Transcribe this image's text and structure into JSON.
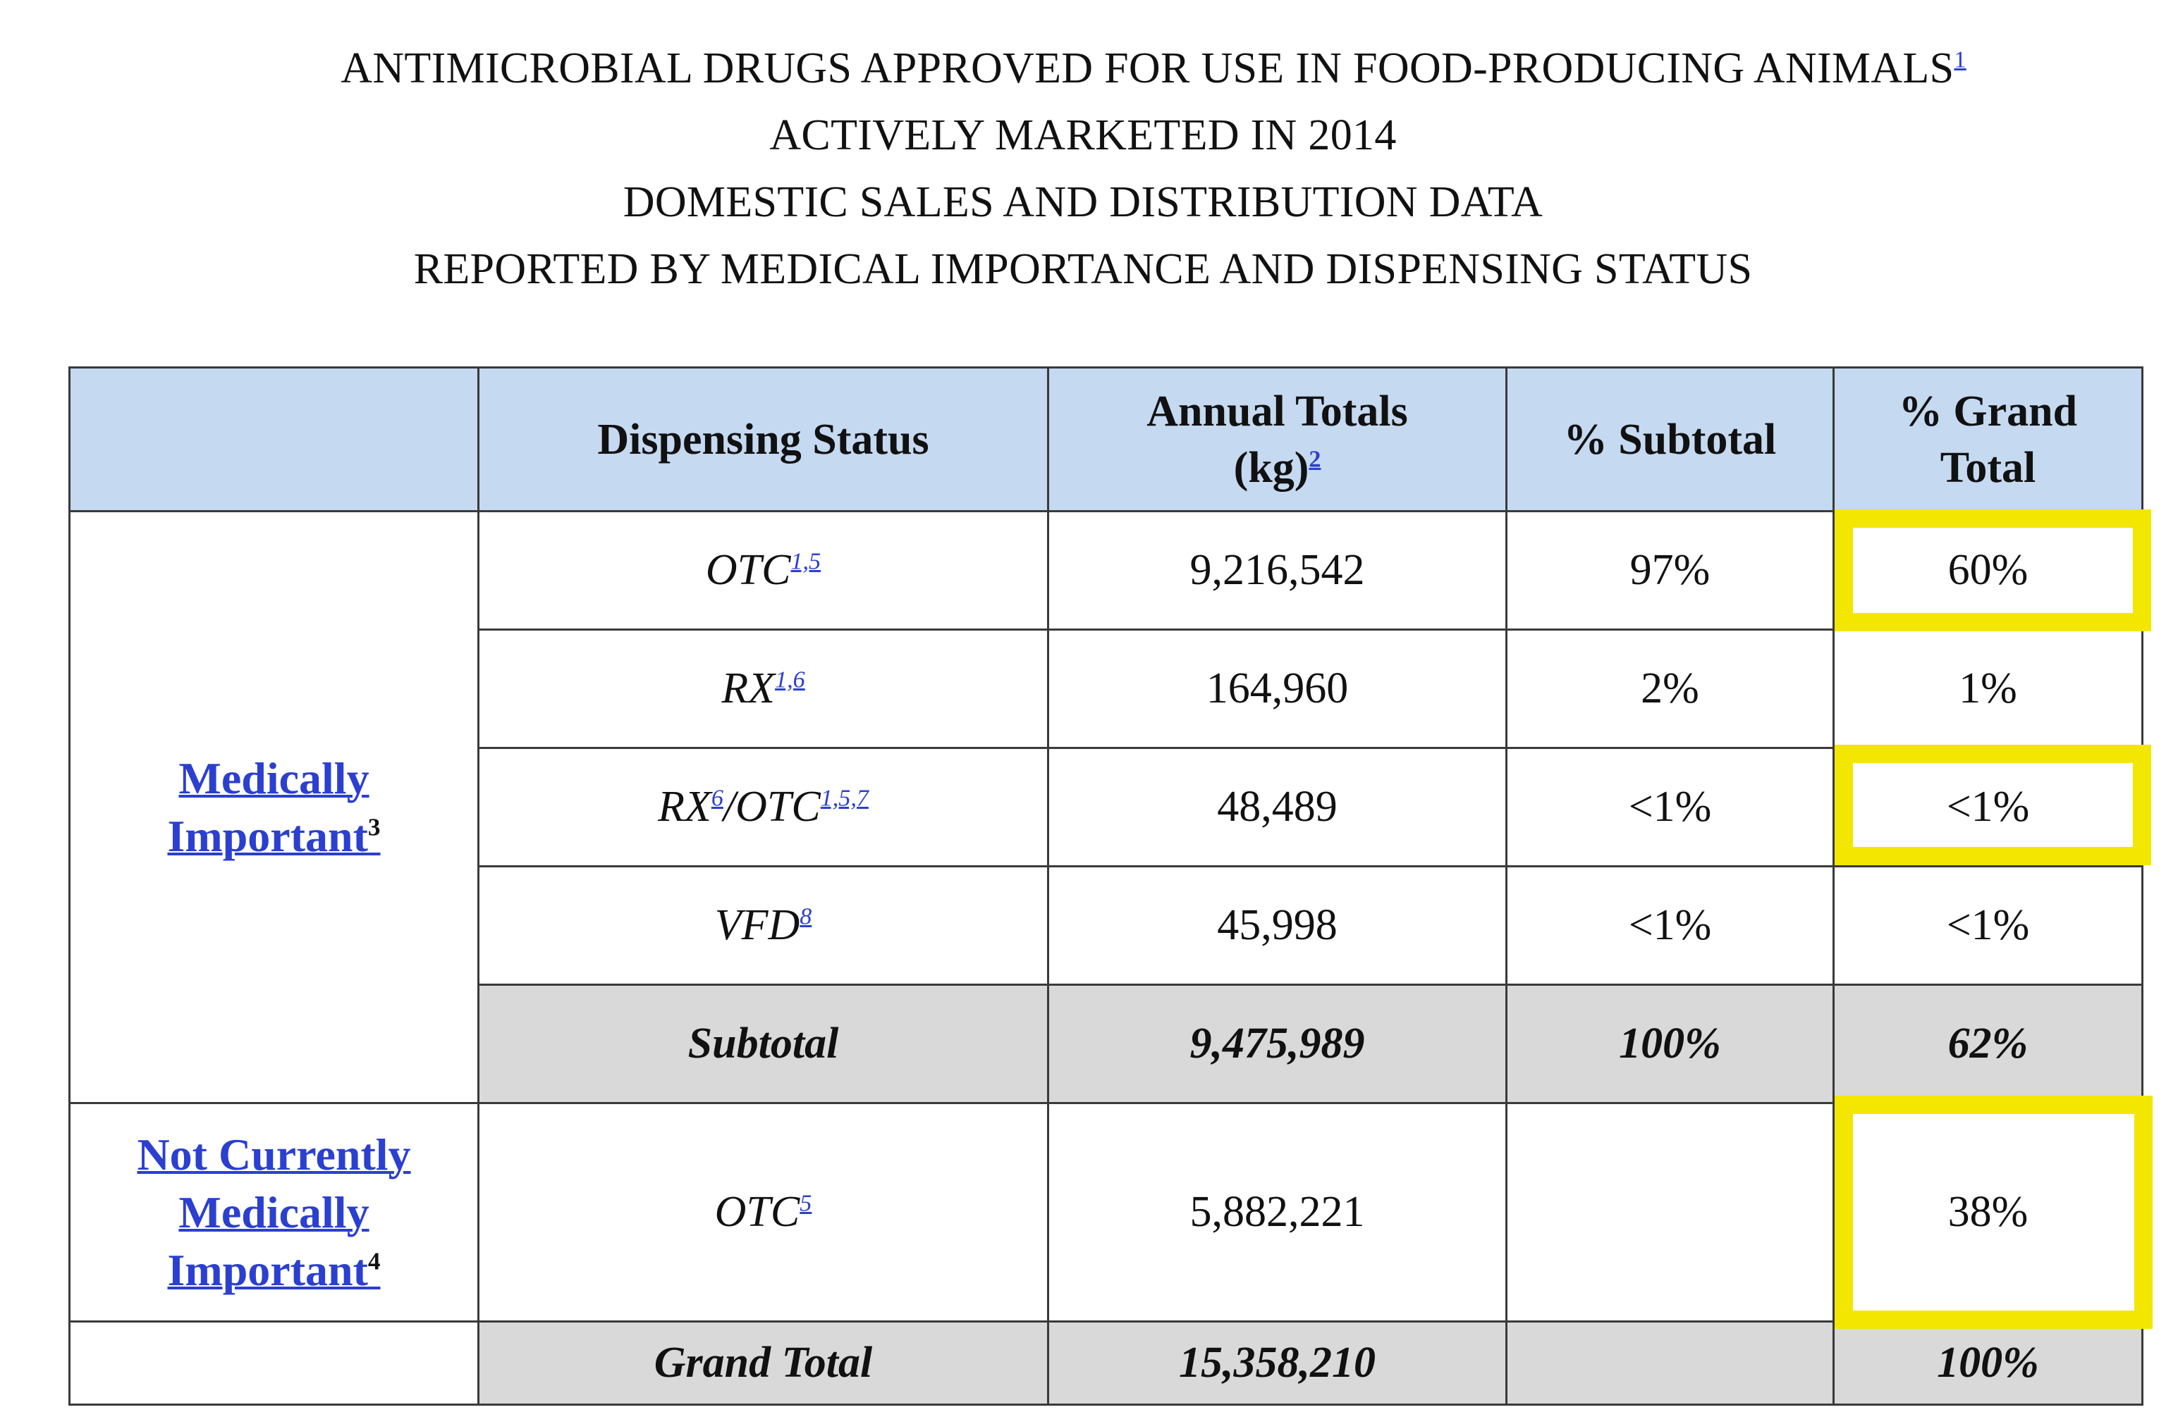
{
  "title": {
    "line1": "ANTIMICROBIAL DRUGS APPROVED FOR USE IN FOOD-PRODUCING ANIMALS",
    "line1_ref": "1",
    "line2": "ACTIVELY MARKETED IN 2014",
    "line3": "DOMESTIC SALES AND DISTRIBUTION DATA",
    "line4": "REPORTED BY MEDICAL IMPORTANCE AND DISPENSING STATUS"
  },
  "table": {
    "headers": {
      "dispensing_status": "Dispensing Status",
      "annual_totals_line1": "Annual Totals",
      "annual_totals_line2": "(kg)",
      "annual_totals_ref": "2",
      "pct_subtotal": "% Subtotal",
      "pct_grand_line1": "% Grand",
      "pct_grand_line2": "Total"
    },
    "groups": {
      "medically_important": {
        "line1": "Medically",
        "line2": "Important",
        "ref": "3"
      },
      "not_medically_important": {
        "line1": "Not Currently",
        "line2": "Medically",
        "line3": "Important",
        "ref": "4"
      }
    },
    "rows": [
      {
        "status": "OTC",
        "refs": "1,5",
        "annual": "9,216,542",
        "pct_sub": "97%",
        "pct_grand": "60%",
        "highlight": true
      },
      {
        "status": "RX",
        "refs": "1,6",
        "annual": "164,960",
        "pct_sub": "2%",
        "pct_grand": "1%",
        "highlight": false
      },
      {
        "status_a": "RX",
        "refs_a": "6",
        "status_b": "/OTC",
        "refs_b": "1,5,7",
        "annual": "48,489",
        "pct_sub": "<1%",
        "pct_grand": "<1%",
        "highlight": true
      },
      {
        "status": "VFD",
        "refs": "8",
        "annual": "45,998",
        "pct_sub": "<1%",
        "pct_grand": "<1%",
        "highlight": false
      }
    ],
    "subtotal": {
      "label": "Subtotal",
      "annual": "9,475,989",
      "pct_sub": "100%",
      "pct_grand": "62%"
    },
    "nmi_row": {
      "status": "OTC",
      "refs": "5",
      "annual": "5,882,221",
      "pct_sub": "",
      "pct_grand": "38%",
      "highlight": true
    },
    "grand_total": {
      "label": "Grand Total",
      "annual": "15,358,210",
      "pct_sub": "",
      "pct_grand": "100%"
    }
  },
  "colors": {
    "header_bg": "#c5d9f1",
    "total_bg": "#d9d9d9",
    "highlight": "#f3e600",
    "link": "#2b3fd0"
  }
}
